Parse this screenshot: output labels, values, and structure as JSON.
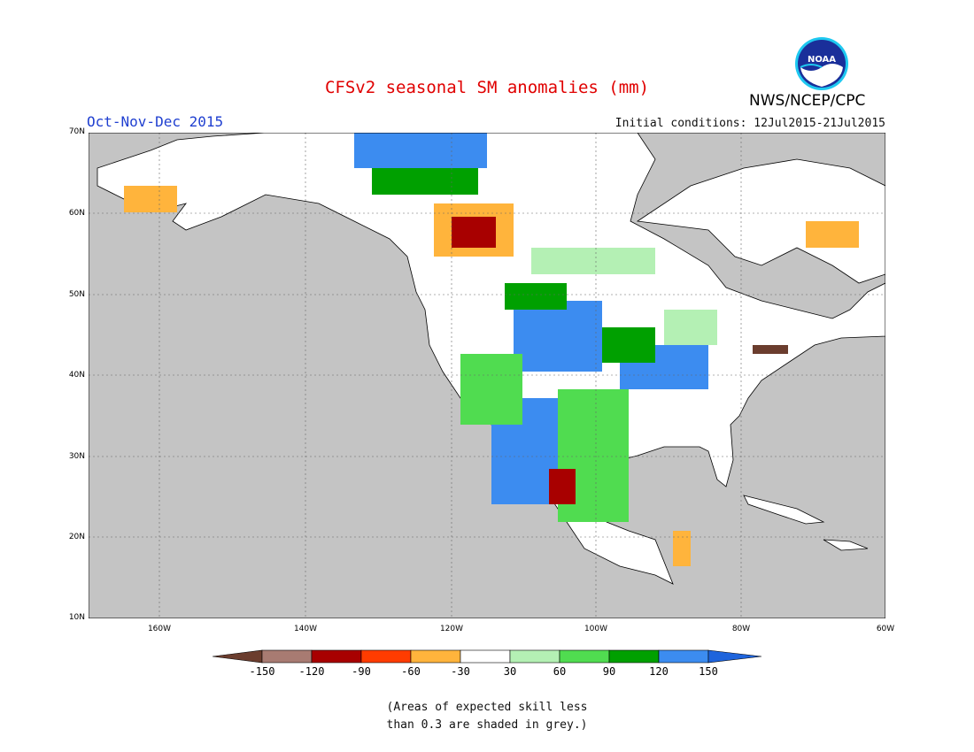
{
  "title": "CFSv2 seasonal SM anomalies (mm)",
  "period": "Oct-Nov-Dec 2015",
  "initial_conditions": "Initial conditions: 12Jul2015-21Jul2015",
  "agency": "NWS/NCEP/CPC",
  "logo_text": "NOAA",
  "map": {
    "lat_labels": [
      "70N",
      "60N",
      "50N",
      "40N",
      "30N",
      "20N",
      "10N"
    ],
    "lon_labels": [
      "160W",
      "140W",
      "120W",
      "100W",
      "80W",
      "60W"
    ],
    "ocean_color": "#c4c4c4",
    "land_color": "#ffffff"
  },
  "legend": {
    "ticks": [
      "-150",
      "-120",
      "-90",
      "-60",
      "-30",
      "30",
      "60",
      "90",
      "120",
      "150"
    ],
    "colors": [
      "#6b3d2e",
      "#a87b72",
      "#a80000",
      "#ff3c00",
      "#ffb43c",
      "#ffffff",
      "#b4f0b4",
      "#50dc50",
      "#00a000",
      "#3c8cf0",
      "#1e64dc"
    ]
  },
  "note": {
    "line1": "(Areas of expected skill less",
    "line2": "than 0.3 are shaded in grey.)"
  }
}
